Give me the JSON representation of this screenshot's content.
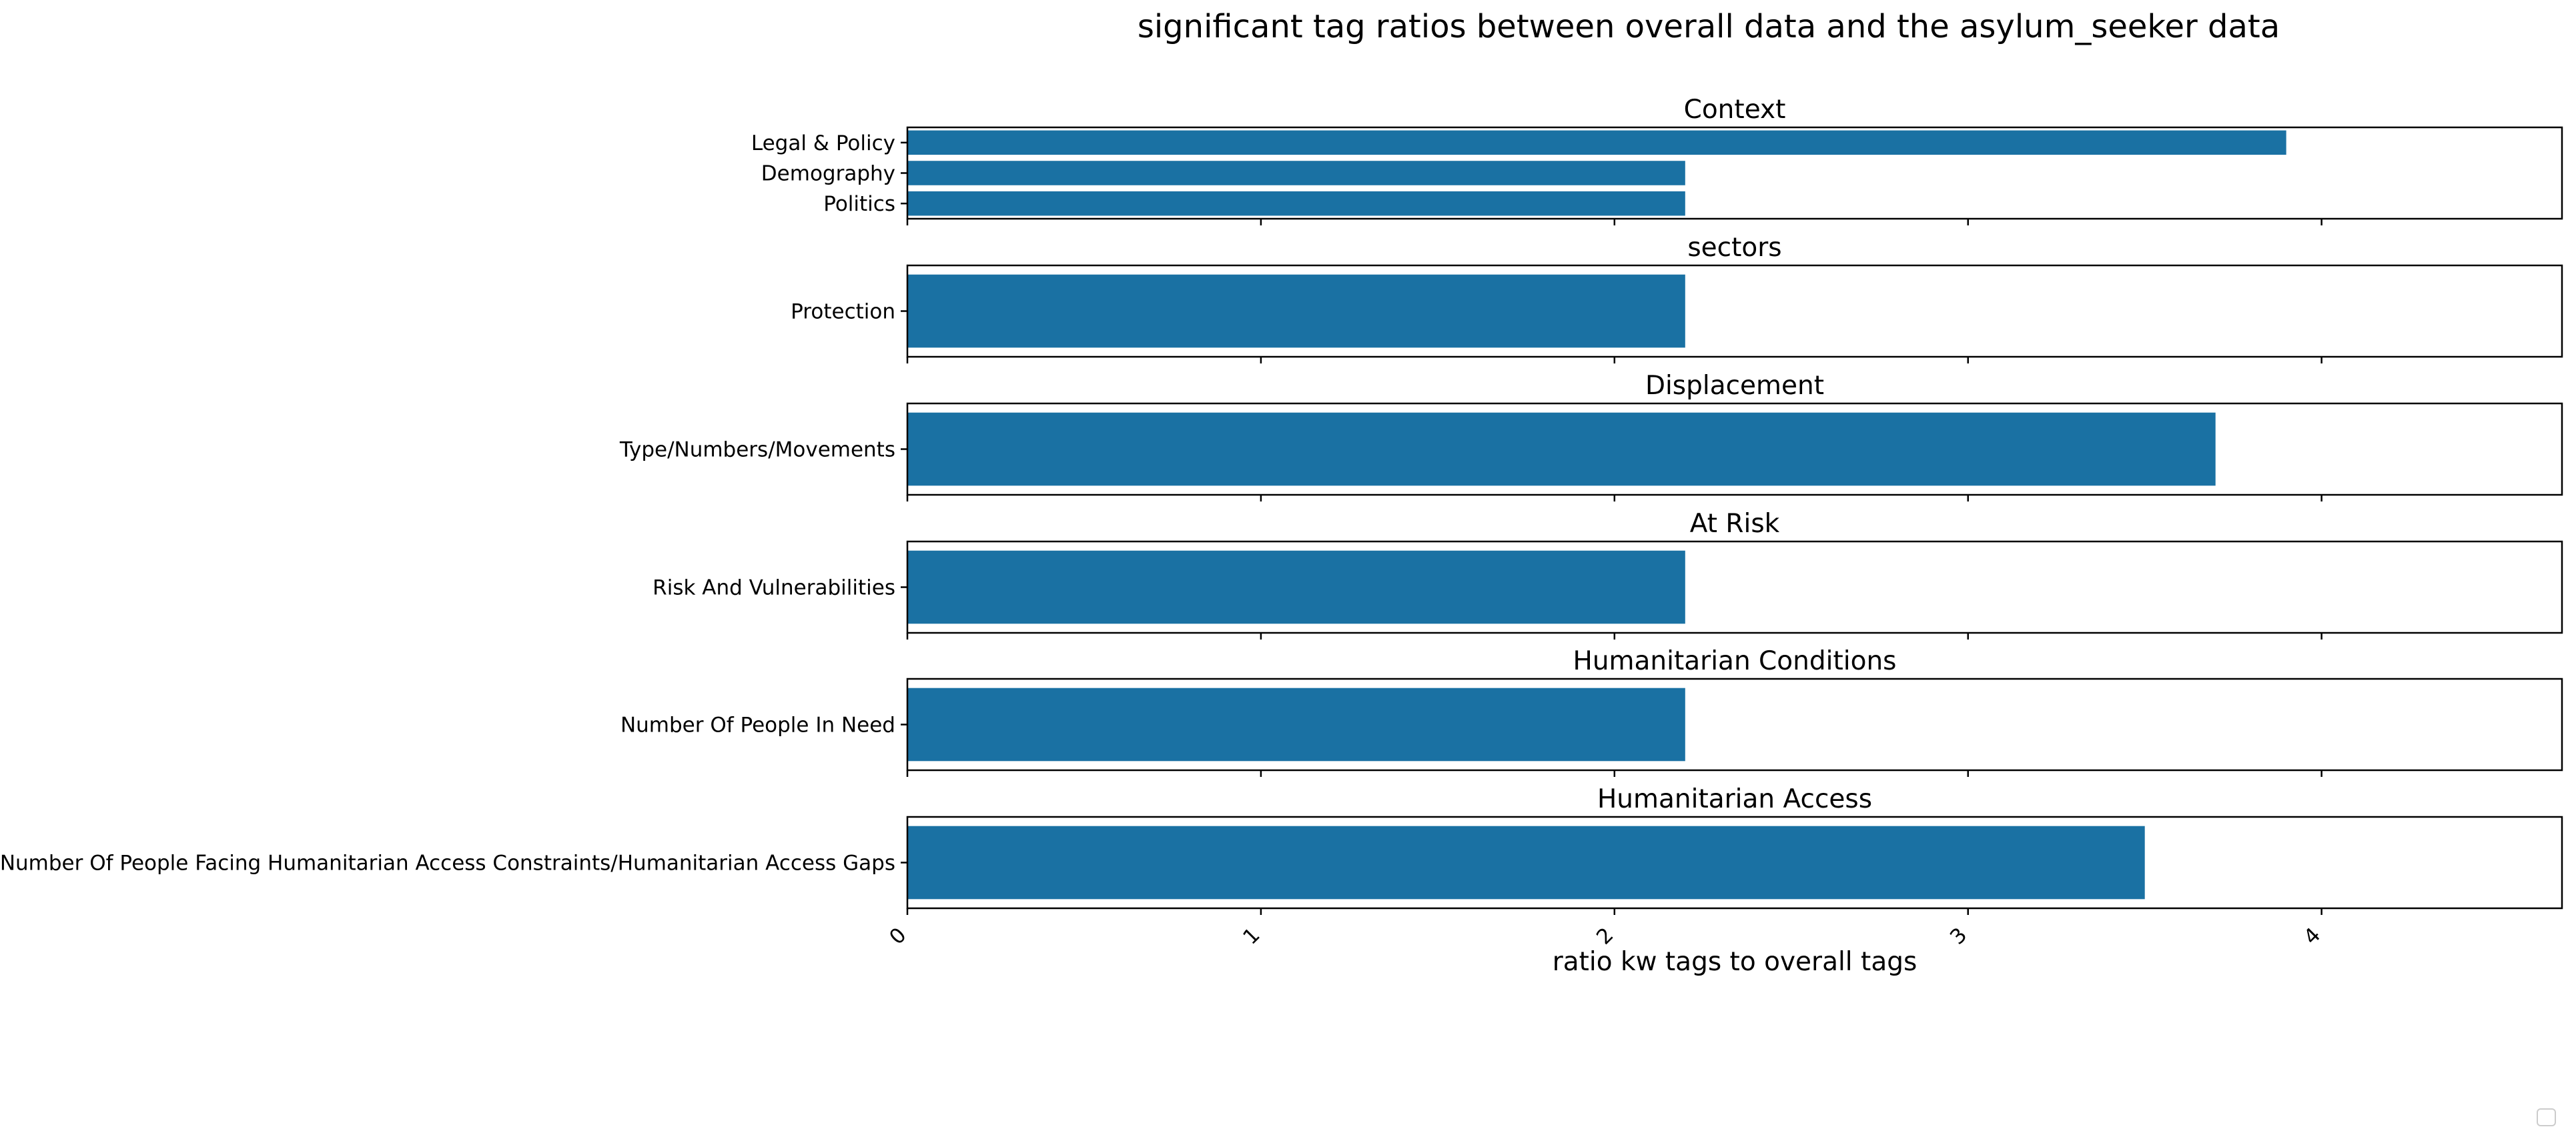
{
  "chart_data": {
    "type": "bar",
    "orientation": "horizontal",
    "title": "significant tag ratios between overall data and the asylum_seeker data",
    "xlabel": "ratio kw tags to overall tags",
    "xlim": [
      0,
      4.68
    ],
    "xticks": [
      "0",
      "1",
      "2",
      "3",
      "4"
    ],
    "bar_color": "#1a71a3",
    "legend": "bottom-right (empty)",
    "panels": [
      {
        "title": "Context",
        "categories": [
          "Legal & Policy",
          "Demography",
          "Politics"
        ],
        "values": [
          3.9,
          2.2,
          2.2
        ]
      },
      {
        "title": "sectors",
        "categories": [
          "Protection"
        ],
        "values": [
          2.2
        ]
      },
      {
        "title": "Displacement",
        "categories": [
          "Type/Numbers/Movements"
        ],
        "values": [
          3.7
        ]
      },
      {
        "title": "At Risk",
        "categories": [
          "Risk And Vulnerabilities"
        ],
        "values": [
          2.2
        ]
      },
      {
        "title": "Humanitarian Conditions",
        "categories": [
          "Number Of People In Need"
        ],
        "values": [
          2.2
        ]
      },
      {
        "title": "Humanitarian Access",
        "categories": [
          "Number Of People Facing Humanitarian Access Constraints/Humanitarian Access Gaps"
        ],
        "values": [
          3.5
        ]
      }
    ]
  }
}
